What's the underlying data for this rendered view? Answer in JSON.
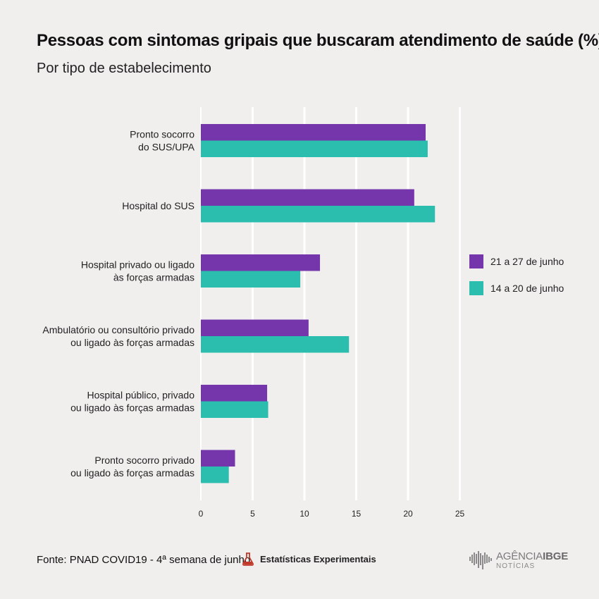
{
  "title": "Pessoas com sintomas gripais que buscaram atendimento de saúde (%)",
  "subtitle": "Por tipo de estabelecimento",
  "colors": {
    "series1": "#7535ab",
    "series2": "#2bbdad",
    "grid": "#ffffff",
    "background": "#f0efee"
  },
  "chart_data": {
    "type": "bar",
    "orientation": "horizontal",
    "categories": [
      [
        "Pronto socorro",
        "do SUS/UPA"
      ],
      [
        "Hospital do SUS"
      ],
      [
        "Hospital privado ou ligado",
        "às forças armadas"
      ],
      [
        "Ambulatório ou consultório privado",
        "ou ligado às forças armadas"
      ],
      [
        "Hospital público, privado",
        "ou ligado às forças armadas"
      ],
      [
        "Pronto socorro privado",
        "ou ligado às forças armadas"
      ]
    ],
    "series": [
      {
        "name": "21 a 27 de junho",
        "values": [
          21.7,
          20.6,
          11.5,
          10.4,
          6.4,
          3.3
        ]
      },
      {
        "name": "14 a 20 de junho",
        "values": [
          21.9,
          22.6,
          9.6,
          14.3,
          6.5,
          2.7
        ]
      }
    ],
    "xticks": [
      0,
      5,
      10,
      15,
      20,
      25
    ],
    "xlim": [
      0,
      25
    ],
    "grid": "vertical",
    "legend": "right"
  },
  "footer": {
    "source": "Fonte: PNAD COVID19 - 4ª semana de junho",
    "experimental": "Estatísticas Experimentais",
    "brand_top_light": "AGÊNCIA",
    "brand_top_bold": "IBGE",
    "brand_bottom": "NOTÍCIAS"
  }
}
